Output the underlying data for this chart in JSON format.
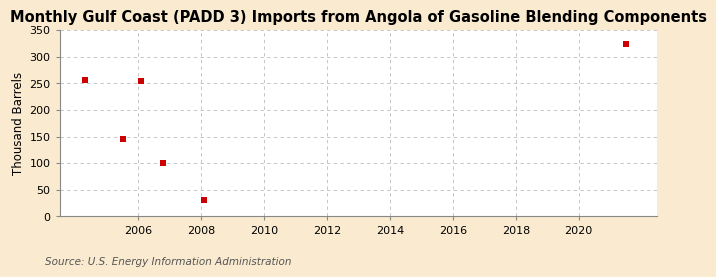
{
  "title": "Monthly Gulf Coast (PADD 3) Imports from Angola of Gasoline Blending Components",
  "ylabel": "Thousand Barrels",
  "source": "Source: U.S. Energy Information Administration",
  "background_color": "#faebd0",
  "plot_background_color": "#ffffff",
  "marker_color": "#cc0000",
  "marker": "s",
  "marker_size": 4,
  "data_points": [
    [
      2004.3,
      256
    ],
    [
      2005.5,
      145
    ],
    [
      2006.1,
      254
    ],
    [
      2006.8,
      100
    ],
    [
      2008.1,
      30
    ],
    [
      2021.5,
      323
    ]
  ],
  "xlim": [
    2003.5,
    2022.5
  ],
  "ylim": [
    0,
    350
  ],
  "xticks": [
    2006,
    2008,
    2010,
    2012,
    2014,
    2016,
    2018,
    2020
  ],
  "yticks": [
    0,
    50,
    100,
    150,
    200,
    250,
    300,
    350
  ],
  "grid_color": "#bbbbbb",
  "grid_linestyle": "--",
  "title_fontsize": 10.5,
  "label_fontsize": 8.5,
  "tick_fontsize": 8,
  "source_fontsize": 7.5
}
